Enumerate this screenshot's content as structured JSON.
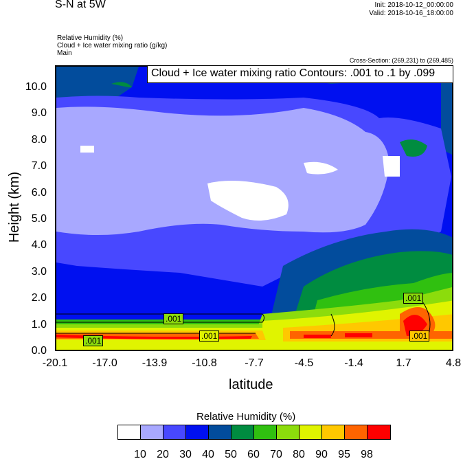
{
  "header": {
    "title": "S-N at 5W",
    "init": "Init: 2018-10-12_00:00:00",
    "valid": "Valid: 2018-10-16_18:00:00",
    "fields": [
      "Relative Humidity   (%)",
      "Cloud + Ice water mixing ratio   (g/kg)",
      "Main"
    ],
    "cross_section": "Cross-Section: (269,231) to (269,485)"
  },
  "chart_data": {
    "type": "heatmap",
    "title": "Cloud + Ice water mixing ratio Contours: .001 to .1 by .099",
    "xlabel": "latitude",
    "ylabel": "Height (km)",
    "xticks": [
      "-20.1",
      "-17.0",
      "-13.9",
      "-10.8",
      "-7.7",
      "-4.5",
      "-1.4",
      "1.7",
      "4.8"
    ],
    "yticks": [
      "0.0",
      "1.0",
      "2.0",
      "3.0",
      "4.0",
      "5.0",
      "6.0",
      "7.0",
      "8.0",
      "9.0",
      "10.0"
    ],
    "xlim": [
      -20.1,
      4.8
    ],
    "ylim": [
      0,
      10.8
    ],
    "colorbar": {
      "title": "Relative Humidity  (%)",
      "levels": [
        "10",
        "20",
        "30",
        "40",
        "50",
        "60",
        "70",
        "80",
        "90",
        "95",
        "98"
      ],
      "colors": [
        "#ffffff",
        "#a8a8ff",
        "#4848ff",
        "#0010f0",
        "#024c9c",
        "#008c40",
        "#30c010",
        "#8cdc0c",
        "#e0f400",
        "#ffc800",
        "#ff6400",
        "#ff0000"
      ]
    },
    "contour_labels": [
      ".001",
      ".001",
      ".001",
      ".001",
      ".001"
    ]
  }
}
